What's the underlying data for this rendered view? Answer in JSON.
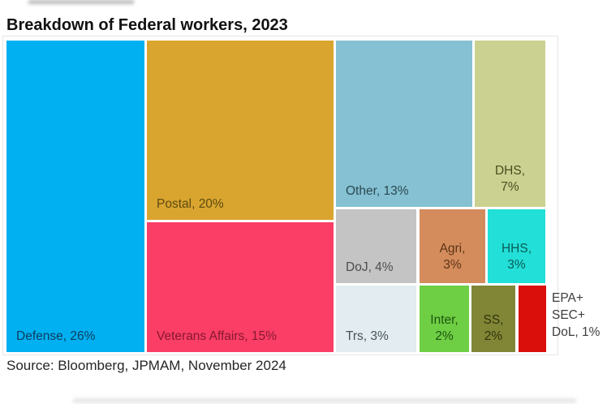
{
  "title": "Breakdown of Federal workers, 2023",
  "source": "Source: Bloomberg, JPMAM, November 2024",
  "chart_data": {
    "type": "treemap",
    "title": "Breakdown of Federal workers, 2023",
    "unit": "%",
    "legend": "none",
    "tiles": [
      {
        "name": "Defense",
        "label": "Defense, 26%",
        "value": 26,
        "color": "#00B0F0",
        "label_color": "#0D3C60"
      },
      {
        "name": "Postal",
        "label": "Postal, 20%",
        "value": 20,
        "color": "#D9A52F",
        "label_color": "#5E4A10"
      },
      {
        "name": "Veterans Affairs",
        "label": "Veterans Affairs, 15%",
        "value": 15,
        "color": "#FA3E66",
        "label_color": "#87182F"
      },
      {
        "name": "Other",
        "label": "Other, 13%",
        "value": 13,
        "color": "#85C1D3",
        "label_color": "#2B4850"
      },
      {
        "name": "DHS",
        "label": "DHS, 7%",
        "value": 7,
        "color": "#CBD190",
        "label_color": "#4A4D20",
        "lines": [
          "DHS,",
          "7%"
        ]
      },
      {
        "name": "DoJ",
        "label": "DoJ, 4%",
        "value": 4,
        "color": "#C4C4C4",
        "label_color": "#4D4D4D"
      },
      {
        "name": "Agri",
        "label": "Agri, 3%",
        "value": 3,
        "color": "#D48C5C",
        "label_color": "#5C3517",
        "lines": [
          "Agri,",
          "3%"
        ]
      },
      {
        "name": "HHS",
        "label": "HHS, 3%",
        "value": 3,
        "color": "#22E0D8",
        "label_color": "#0A5A55",
        "lines": [
          "HHS,",
          "3%"
        ]
      },
      {
        "name": "Trs",
        "label": "Trs, 3%",
        "value": 3,
        "color": "#E2ECF1",
        "label_color": "#46545B"
      },
      {
        "name": "Inter",
        "label": "Inter, 2%",
        "value": 2,
        "color": "#6ECE44",
        "label_color": "#1E5510",
        "lines": [
          "Inter,",
          "2%"
        ]
      },
      {
        "name": "SS",
        "label": "SS, 2%",
        "value": 2,
        "color": "#808635",
        "label_color": "#30340E",
        "lines": [
          "SS,",
          "2%"
        ]
      },
      {
        "name": "EPA+SEC+DoL",
        "label": "EPA+ SEC+ DoL, 1%",
        "value": 1,
        "color": "#DA0E0A",
        "label_color": "#3D3D3D",
        "lines": [
          "EPA+",
          "SEC+",
          "DoL, 1%"
        ],
        "label_outside": true
      }
    ]
  }
}
